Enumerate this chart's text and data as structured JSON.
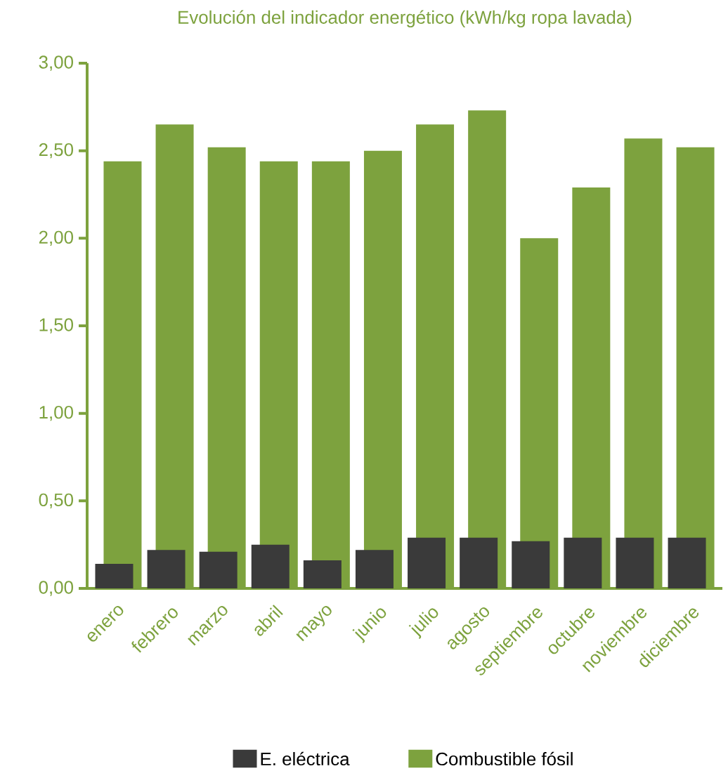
{
  "chart_data": {
    "type": "bar",
    "title": "Evolución del indicador energético (kWh/kg ropa lavada)",
    "categories": [
      "enero",
      "febrero",
      "marzo",
      "abril",
      "mayo",
      "junio",
      "julio",
      "agosto",
      "septiembre",
      "octubre",
      "noviembre",
      "diciembre"
    ],
    "series": [
      {
        "name": "Combustible fósil",
        "color": "#7da23e",
        "values": [
          2.44,
          2.65,
          2.52,
          2.44,
          2.44,
          2.5,
          2.65,
          2.73,
          2.0,
          2.29,
          2.57,
          2.52
        ]
      },
      {
        "name": "E. eléctrica",
        "color": "#3a3a3a",
        "values": [
          0.14,
          0.22,
          0.21,
          0.25,
          0.16,
          0.22,
          0.29,
          0.29,
          0.27,
          0.29,
          0.29,
          0.29
        ]
      }
    ],
    "ylim": [
      0,
      3
    ],
    "yticks": [
      {
        "value": 0,
        "label": "0,00"
      },
      {
        "value": 0.5,
        "label": "0,50"
      },
      {
        "value": 1,
        "label": "1,00"
      },
      {
        "value": 1.5,
        "label": "1,50"
      },
      {
        "value": 2,
        "label": "2,00"
      },
      {
        "value": 2.5,
        "label": "2,50"
      },
      {
        "value": 3,
        "label": "3,00"
      }
    ],
    "grid": false,
    "legend": "bottom"
  }
}
